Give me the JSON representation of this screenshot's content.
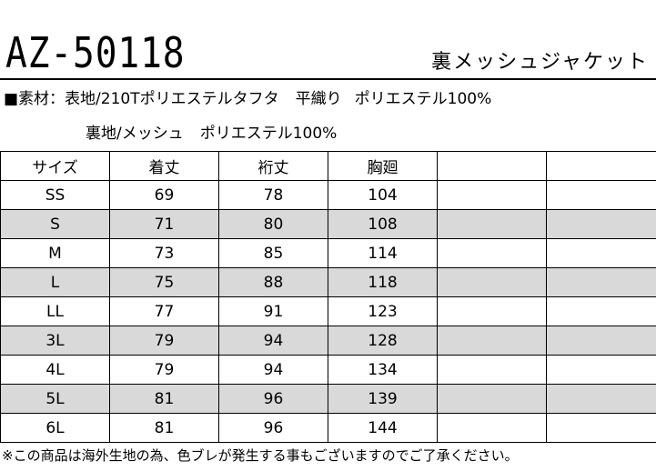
{
  "header": {
    "model_number": "AZ-50118",
    "product_name": "裏メッシュジャケット"
  },
  "material": {
    "bullet": "■",
    "label": "素材：",
    "outer": "表地/210Tポリエステルタフタ",
    "weave": "平織り",
    "outer_composition": "ポリエステル100%",
    "lining": "裏地/メッシュ",
    "lining_composition": "ポリエステル100%"
  },
  "size_table": {
    "headers": [
      "サイズ",
      "着丈",
      "裄丈",
      "胸廻",
      "",
      ""
    ],
    "rows": [
      {
        "size": "SS",
        "length": "69",
        "sleeve": "78",
        "chest": "104"
      },
      {
        "size": "S",
        "length": "71",
        "sleeve": "80",
        "chest": "108"
      },
      {
        "size": "M",
        "length": "73",
        "sleeve": "85",
        "chest": "114"
      },
      {
        "size": "L",
        "length": "75",
        "sleeve": "88",
        "chest": "118"
      },
      {
        "size": "LL",
        "length": "77",
        "sleeve": "91",
        "chest": "123"
      },
      {
        "size": "3L",
        "length": "79",
        "sleeve": "94",
        "chest": "128"
      },
      {
        "size": "4L",
        "length": "79",
        "sleeve": "94",
        "chest": "134"
      },
      {
        "size": "5L",
        "length": "81",
        "sleeve": "96",
        "chest": "139"
      },
      {
        "size": "6L",
        "length": "81",
        "sleeve": "96",
        "chest": "144"
      }
    ]
  },
  "footnote": "※この商品は海外生地の為、色ブレが発生する事もございますのでご了承ください。",
  "colors": {
    "shaded_row": "#d9d9d9",
    "text": "#000000",
    "background": "#ffffff"
  }
}
